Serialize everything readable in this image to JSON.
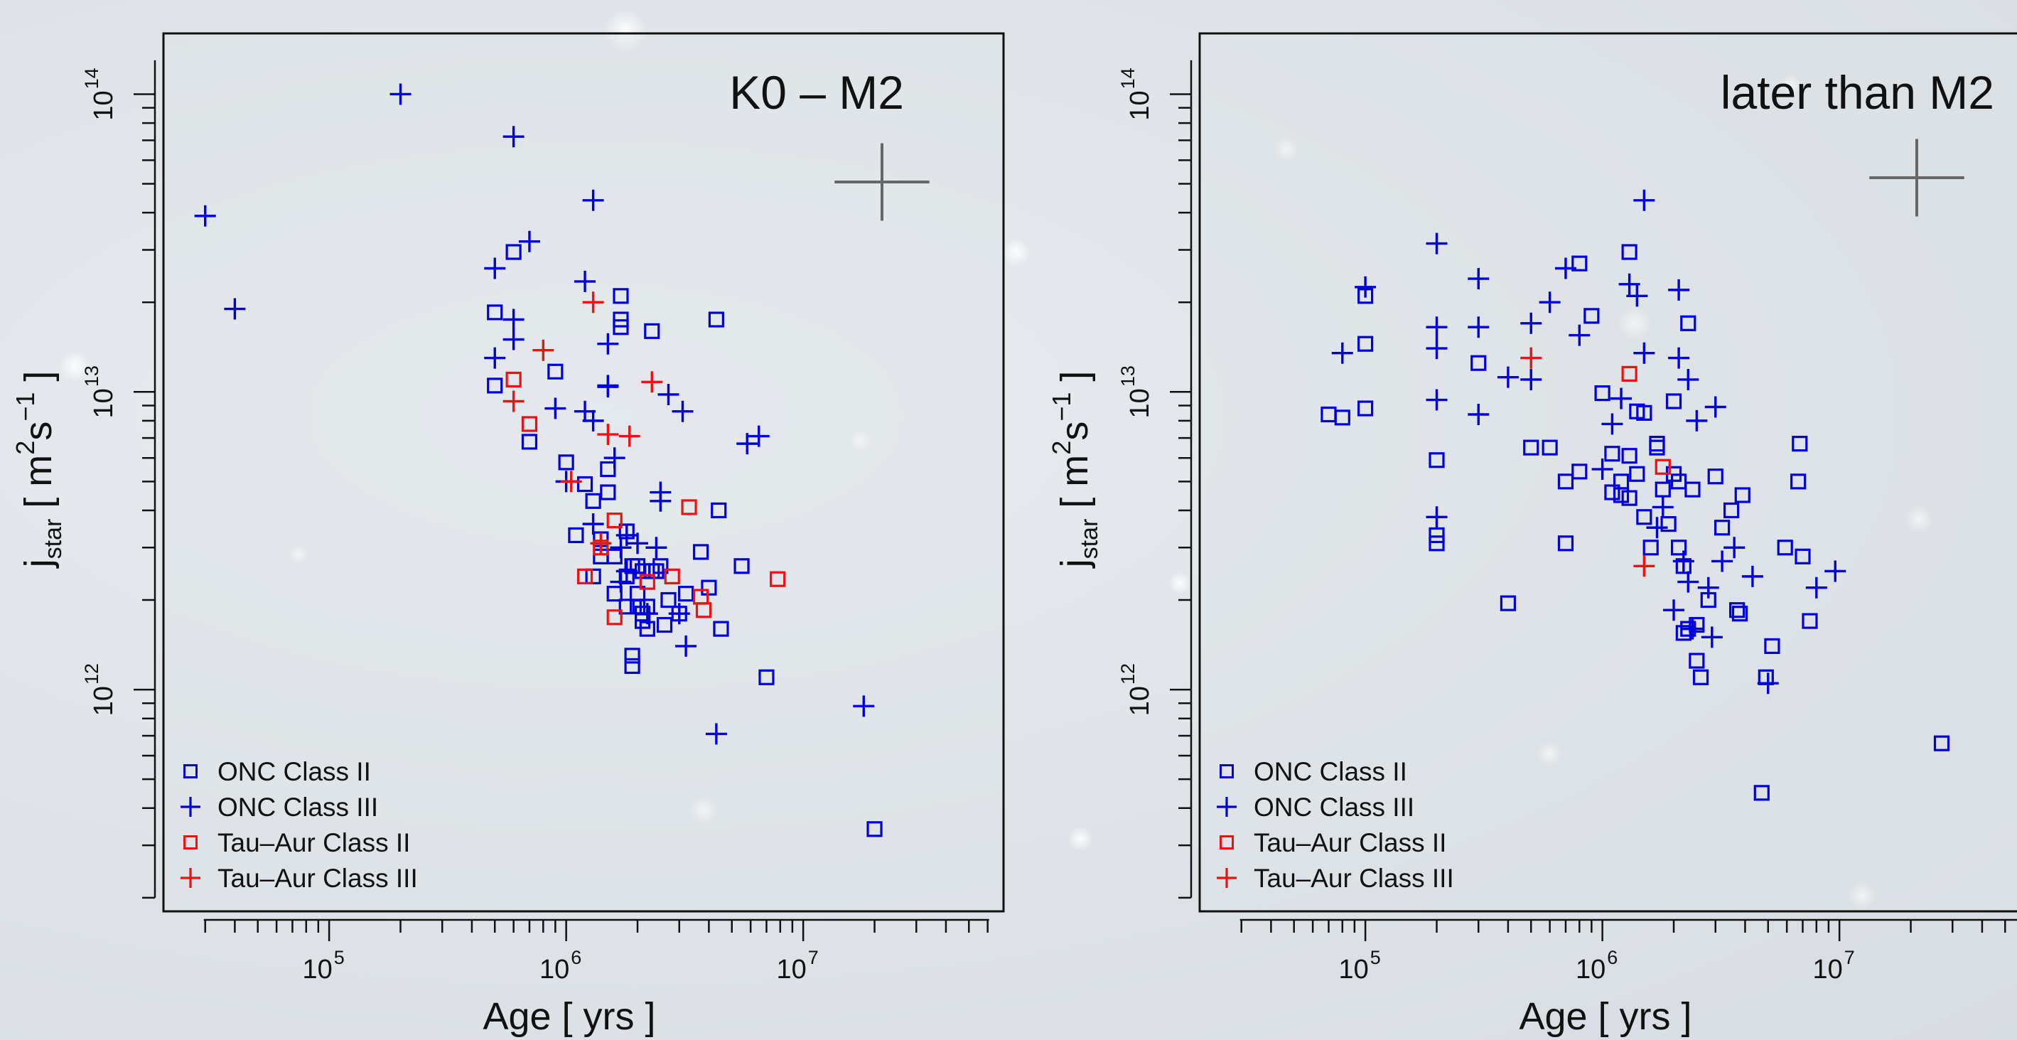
{
  "chart_data": [
    {
      "type": "scatter",
      "title": "K0 – M2",
      "xlabel": "Age [ yrs ]",
      "ylabel": "j_star [ m^2 s^-1 ]",
      "xscale": "log",
      "yscale": "log",
      "xlim": [
        20000,
        70000000
      ],
      "ylim": [
        180000000000,
        160000000000000
      ],
      "x_ticks": [
        {
          "value": 100000,
          "base": "10",
          "exp": "5"
        },
        {
          "value": 1000000,
          "base": "10",
          "exp": "6"
        },
        {
          "value": 10000000,
          "base": "10",
          "exp": "7"
        }
      ],
      "y_ticks": [
        {
          "value": 1000000000000,
          "base": "10",
          "exp": "12"
        },
        {
          "value": 10000000000000,
          "base": "10",
          "exp": "13"
        },
        {
          "value": 100000000000000,
          "base": "10",
          "exp": "14"
        }
      ],
      "legend_position": "bottom-left",
      "error_bar": {
        "x_factor_log": 0.2,
        "y_factor_log": 0.13
      },
      "series": [
        {
          "name": "ONC Class II",
          "marker": "square",
          "color": "#0000dd",
          "x": [
            500000,
            500000,
            600000,
            700000,
            900000,
            1000000,
            1100000,
            1200000,
            1300000,
            1300000,
            1400000,
            1500000,
            1500000,
            1600000,
            1600000,
            1700000,
            1700000,
            1800000,
            1800000,
            1800000,
            1900000,
            1900000,
            2000000,
            2000000,
            2000000,
            2100000,
            2100000,
            2200000,
            2200000,
            2300000,
            2300000,
            2400000,
            2500000,
            2600000,
            2700000,
            3000000,
            3200000,
            3700000,
            4000000,
            4300000,
            4400000,
            4500000,
            5500000,
            7000000,
            20000000,
            1400000,
            1700000,
            1900000,
            2100000
          ],
          "y": [
            18500000000000,
            10500000000000,
            29500000000000,
            6800000000000,
            11700000000000,
            5800000000000,
            3300000000000,
            4900000000000,
            4300000000000,
            2400000000000,
            2800000000000,
            4600000000000,
            5500000000000,
            2100000000000,
            2800000000000,
            21000000000000,
            17500000000000,
            2400000000000,
            3400000000000,
            1900000000000,
            1300000000000,
            1200000000000,
            2600000000000,
            2100000000000,
            1900000000000,
            2500000000000,
            1800000000000,
            1600000000000,
            1900000000000,
            16000000000000,
            2500000000000,
            2500000000000,
            2600000000000,
            1650000000000,
            2000000000000,
            1800000000000,
            2100000000000,
            2900000000000,
            2200000000000,
            17500000000000,
            4000000000000,
            1600000000000,
            2600000000000,
            1100000000000,
            340000000000,
            3200000000000,
            16500000000000,
            2600000000000,
            1700000000000
          ]
        },
        {
          "name": "ONC Class III",
          "marker": "plus",
          "color": "#0000dd",
          "x": [
            30000,
            40000,
            200000,
            500000,
            500000,
            600000,
            600000,
            600000,
            700000,
            900000,
            1000000,
            1200000,
            1200000,
            1300000,
            1300000,
            1500000,
            1500000,
            1600000,
            1700000,
            1800000,
            1800000,
            2000000,
            2200000,
            2400000,
            2500000,
            2700000,
            3100000,
            3200000,
            4300000,
            5800000,
            6500000,
            18000000,
            1300000,
            1500000,
            1700000,
            2500000,
            3000000
          ],
          "y": [
            39000000000000,
            19000000000000,
            100000000000000,
            26000000000000,
            13000000000000,
            72000000000000,
            15000000000000,
            17500000000000,
            32000000000000,
            8800000000000,
            5000000000000,
            23500000000000,
            8600000000000,
            44000000000000,
            8000000000000,
            14500000000000,
            10500000000000,
            6000000000000,
            3000000000000,
            3300000000000,
            2500000000000,
            3100000000000,
            1800000000000,
            3000000000000,
            4300000000000,
            9800000000000,
            8600000000000,
            1400000000000,
            710000000000,
            6700000000000,
            7100000000000,
            880000000000,
            3600000000000,
            10400000000000,
            2300000000000,
            4600000000000,
            1800000000000
          ]
        },
        {
          "name": "Tau–Aur Class II",
          "marker": "square",
          "color": "#ee1111",
          "x": [
            600000,
            700000,
            1200000,
            1400000,
            1600000,
            1600000,
            2200000,
            2800000,
            3300000,
            3700000,
            3800000,
            7800000
          ],
          "y": [
            11000000000000,
            7800000000000,
            2400000000000,
            3000000000000,
            3700000000000,
            1750000000000,
            2300000000000,
            2400000000000,
            4100000000000,
            2050000000000,
            1850000000000,
            2350000000000
          ]
        },
        {
          "name": "Tau–Aur Class III",
          "marker": "plus",
          "color": "#ee1111",
          "x": [
            600000,
            800000,
            1050000,
            1300000,
            1400000,
            1500000,
            1850000,
            2300000
          ],
          "y": [
            9300000000000,
            13800000000000,
            5000000000000,
            20000000000000,
            3100000000000,
            7200000000000,
            7100000000000,
            10800000000000
          ]
        }
      ]
    },
    {
      "type": "scatter",
      "title": "later than M2",
      "xlabel": "Age [ yrs ]",
      "ylabel": "j_star [ m^2 s^-1 ]",
      "xscale": "log",
      "yscale": "log",
      "xlim": [
        20000,
        70000000
      ],
      "ylim": [
        180000000000,
        160000000000000
      ],
      "x_ticks": [
        {
          "value": 100000,
          "base": "10",
          "exp": "5"
        },
        {
          "value": 1000000,
          "base": "10",
          "exp": "6"
        },
        {
          "value": 10000000,
          "base": "10",
          "exp": "7"
        }
      ],
      "y_ticks": [
        {
          "value": 1000000000000,
          "base": "10",
          "exp": "12"
        },
        {
          "value": 10000000000000,
          "base": "10",
          "exp": "13"
        },
        {
          "value": 100000000000000,
          "base": "10",
          "exp": "14"
        }
      ],
      "legend_position": "bottom-left",
      "error_bar": {
        "x_factor_log": 0.2,
        "y_factor_log": 0.13
      },
      "series": [
        {
          "name": "ONC Class II",
          "marker": "square",
          "color": "#0000dd",
          "x": [
            70000,
            80000,
            100000,
            100000,
            100000,
            200000,
            200000,
            200000,
            300000,
            400000,
            500000,
            600000,
            700000,
            700000,
            800000,
            800000,
            900000,
            1000000,
            1100000,
            1100000,
            1200000,
            1200000,
            1300000,
            1300000,
            1300000,
            1400000,
            1400000,
            1500000,
            1500000,
            1600000,
            1700000,
            1700000,
            1800000,
            1900000,
            2000000,
            2000000,
            2100000,
            2100000,
            2200000,
            2200000,
            2300000,
            2300000,
            2400000,
            2500000,
            2500000,
            2600000,
            2800000,
            3000000,
            3200000,
            3500000,
            3700000,
            3800000,
            3900000,
            4700000,
            4900000,
            5200000,
            5900000,
            6700000,
            6800000,
            7000000,
            7500000,
            27000000
          ],
          "y": [
            8400000000000,
            8200000000000,
            21000000000000,
            14500000000000,
            8800000000000,
            5900000000000,
            3300000000000,
            3100000000000,
            12500000000000,
            1950000000000,
            6500000000000,
            6500000000000,
            5000000000000,
            3100000000000,
            27000000000000,
            5400000000000,
            18000000000000,
            9900000000000,
            6200000000000,
            4600000000000,
            5000000000000,
            4500000000000,
            29500000000000,
            6100000000000,
            4400000000000,
            5300000000000,
            8600000000000,
            3800000000000,
            8500000000000,
            3000000000000,
            6500000000000,
            6700000000000,
            4700000000000,
            3600000000000,
            9300000000000,
            5300000000000,
            5000000000000,
            3000000000000,
            2600000000000,
            1550000000000,
            17000000000000,
            1600000000000,
            4700000000000,
            1250000000000,
            1650000000000,
            1100000000000,
            2000000000000,
            5200000000000,
            3500000000000,
            4000000000000,
            1850000000000,
            1800000000000,
            4500000000000,
            450000000000,
            1100000000000,
            1400000000000,
            3000000000000,
            5000000000000,
            6700000000000,
            2800000000000,
            1700000000000,
            660000000000
          ]
        },
        {
          "name": "ONC Class III",
          "marker": "plus",
          "color": "#0000dd",
          "x": [
            80000,
            100000,
            200000,
            200000,
            200000,
            200000,
            200000,
            300000,
            300000,
            300000,
            400000,
            500000,
            500000,
            600000,
            700000,
            800000,
            1000000,
            1100000,
            1200000,
            1300000,
            1400000,
            1500000,
            1500000,
            1700000,
            1800000,
            2000000,
            2100000,
            2100000,
            2200000,
            2300000,
            2300000,
            2400000,
            2500000,
            2800000,
            2900000,
            3000000,
            3200000,
            3600000,
            4300000,
            5000000,
            8000000,
            9600000
          ],
          "y": [
            13500000000000,
            22500000000000,
            31500000000000,
            16500000000000,
            14000000000000,
            9400000000000,
            3800000000000,
            24000000000000,
            16500000000000,
            8400000000000,
            11200000000000,
            17000000000000,
            11000000000000,
            20000000000000,
            26000000000000,
            15500000000000,
            5500000000000,
            7800000000000,
            9500000000000,
            23000000000000,
            21000000000000,
            44000000000000,
            13500000000000,
            3500000000000,
            4100000000000,
            1850000000000,
            22000000000000,
            13000000000000,
            2700000000000,
            11000000000000,
            2300000000000,
            1600000000000,
            8000000000000,
            2200000000000,
            1500000000000,
            8900000000000,
            2700000000000,
            3000000000000,
            2400000000000,
            1050000000000,
            2200000000000,
            2500000000000
          ]
        },
        {
          "name": "Tau–Aur Class II",
          "marker": "square",
          "color": "#ee1111",
          "x": [
            1300000,
            1800000
          ],
          "y": [
            11500000000000,
            5600000000000
          ]
        },
        {
          "name": "Tau–Aur Class III",
          "marker": "plus",
          "color": "#ee1111",
          "x": [
            500000,
            1500000
          ],
          "y": [
            13000000000000,
            2600000000000
          ]
        }
      ]
    }
  ]
}
